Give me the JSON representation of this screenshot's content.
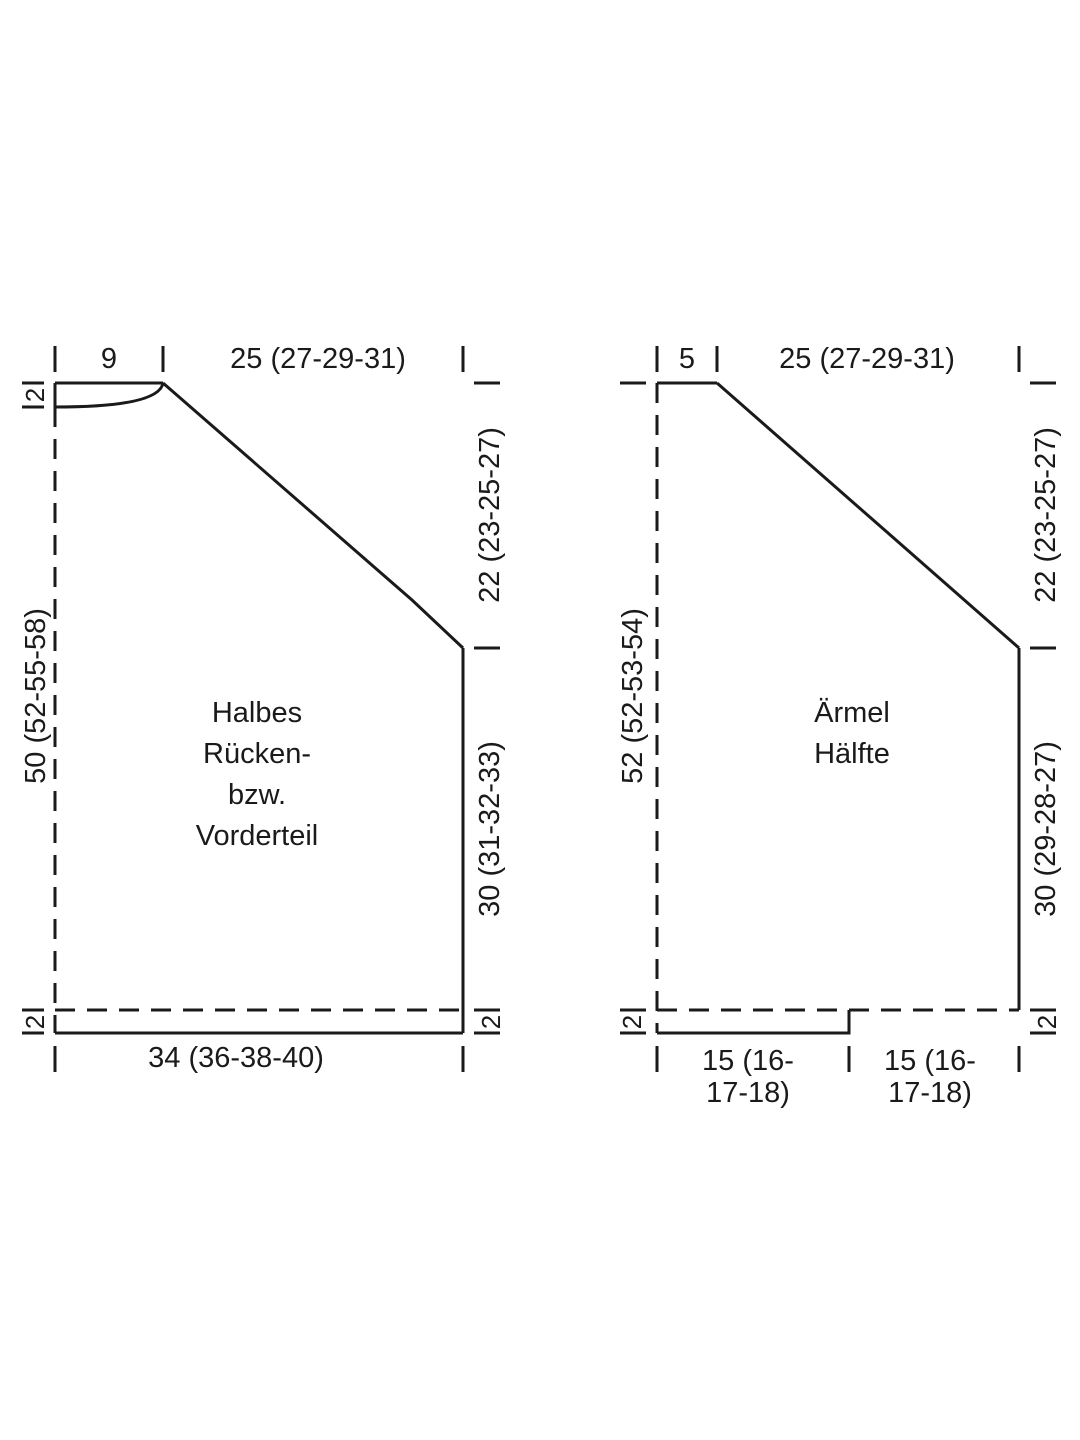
{
  "left": {
    "label_lines": [
      "Halbes",
      "Rücken-",
      "bzw.",
      "Vorderteil"
    ],
    "top_left_width": "9",
    "top_right_width": "25 (27-29-31)",
    "bottom_width": "34 (36-38-40)",
    "total_height": "50 (52-55-58)",
    "upper_right_height": "22 (23-25-27)",
    "lower_right_height": "30 (31-32-33)",
    "neck_depth": "2",
    "hem_left": "2",
    "hem_right": "2"
  },
  "right": {
    "label_lines": [
      "Ärmel",
      "Hälfte"
    ],
    "top_left_width": "5",
    "top_right_width": "25 (27-29-31)",
    "bottom_left_width_lines": [
      "15 (16-",
      "17-18)"
    ],
    "bottom_right_width_lines": [
      "15 (16-",
      "17-18)"
    ],
    "total_height": "52 (52-53-54)",
    "upper_right_height": "22 (23-25-27)",
    "lower_right_height": "30 (29-28-27)",
    "hem_left": "2",
    "hem_right": "2"
  }
}
